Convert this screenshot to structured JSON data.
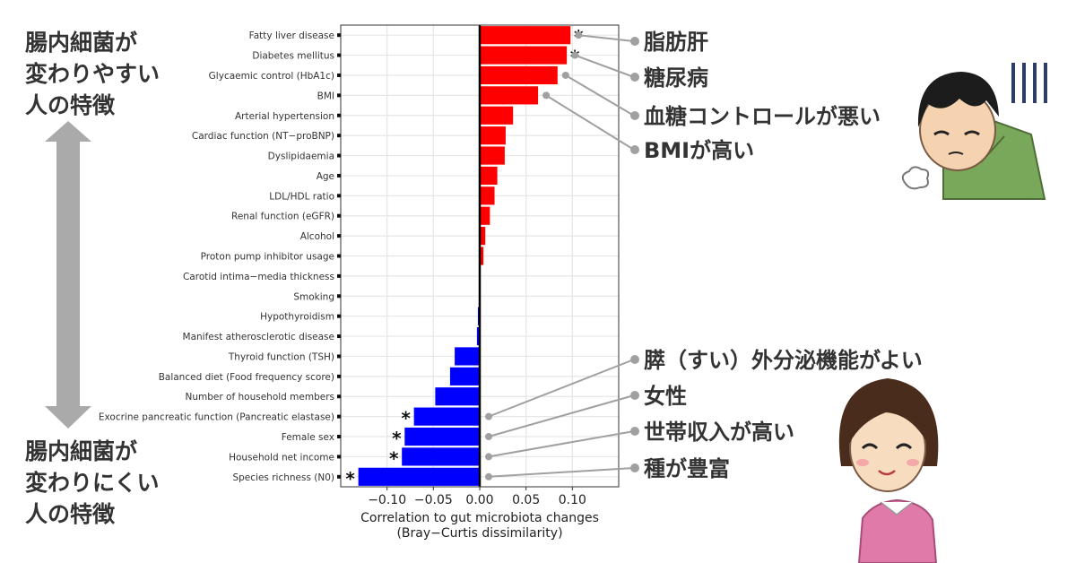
{
  "labels": {
    "top": "腸内細菌が\n変わりやすい\n人の特徴",
    "bottom": "腸内細菌が\n変わりにくい\n人の特徴"
  },
  "colors": {
    "positive": "#ff0000",
    "negative": "#0000ff",
    "annotation_line": "#a0a0a0",
    "arrow": "#aaaaaa",
    "grid": "#e6e6e6"
  },
  "annotations": [
    {
      "text": "脂肪肝",
      "category_index": 0
    },
    {
      "text": "糖尿病",
      "category_index": 1
    },
    {
      "text": "血糖コントロールが悪い",
      "category_index": 2
    },
    {
      "text": "BMIが高い",
      "category_index": 3
    },
    {
      "text": "膵（すい）外分泌機能がよい",
      "category_index": 19
    },
    {
      "text": "女性",
      "category_index": 20
    },
    {
      "text": "世帯収入が高い",
      "category_index": 21
    },
    {
      "text": "種が豊富",
      "category_index": 22
    }
  ],
  "chart_data": {
    "type": "bar",
    "orientation": "horizontal",
    "categories": [
      "Fatty liver disease",
      "Diabetes mellitus",
      "Glycaemic control (HbA1c)",
      "BMI",
      "Arterial hypertension",
      "Cardiac function (NT−proBNP)",
      "Dyslipidaemia",
      "Age",
      "LDL/HDL ratio",
      "Renal function (eGFR)",
      "Alcohol",
      "Proton pump inhibitor usage",
      "Carotid intima−media thickness",
      "Smoking",
      "Hypothyroidism",
      "Manifest atherosclerotic disease",
      "Thyroid function (TSH)",
      "Balanced diet (Food frequency score)",
      "Number of household members",
      "Exocrine pancreatic function (Pancreatic elastase)",
      "Female sex",
      "Household net income",
      "Species richness (N0)"
    ],
    "values": [
      0.098,
      0.094,
      0.084,
      0.063,
      0.036,
      0.028,
      0.027,
      0.019,
      0.016,
      0.011,
      0.006,
      0.004,
      0.0005,
      0.0003,
      -0.002,
      -0.003,
      -0.027,
      -0.032,
      -0.048,
      -0.071,
      -0.081,
      -0.084,
      -0.131
    ],
    "significance": [
      "*",
      "*",
      "",
      "",
      "",
      "",
      "",
      "",
      "",
      "",
      "",
      "",
      "",
      "",
      "",
      "",
      "",
      "",
      "",
      "*",
      "*",
      "*",
      "*"
    ],
    "xlabel": "Correlation to gut microbiota changes",
    "xlabel2": "(Bray−Curtis dissimilarity)",
    "xlim": [
      -0.15,
      0.15
    ],
    "xticks": [
      -0.1,
      -0.05,
      0.0,
      0.05,
      0.1
    ],
    "xtick_labels": [
      "−0.10",
      "−0.05",
      "0.00",
      "0.05",
      "0.10"
    ],
    "grid": true
  }
}
